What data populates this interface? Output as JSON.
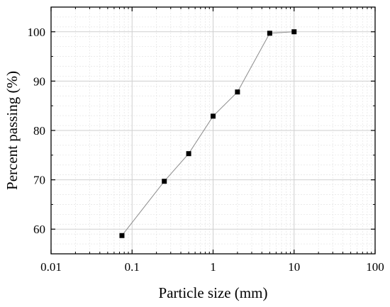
{
  "chart_data": {
    "type": "line",
    "title": "",
    "xlabel": "Particle size (mm)",
    "ylabel": "Percent passing (%)",
    "x_scale": "log",
    "xlim": [
      0.01,
      100
    ],
    "ylim": [
      55,
      105
    ],
    "grid": true,
    "x_ticks": [
      0.01,
      0.1,
      1,
      10,
      100
    ],
    "x_tick_labels": [
      "0.01",
      "0.1",
      "1",
      "10",
      "100"
    ],
    "y_ticks": [
      60,
      70,
      80,
      90,
      100
    ],
    "y_tick_labels": [
      "60",
      "70",
      "80",
      "90",
      "100"
    ],
    "series": [
      {
        "x": [
          0.075,
          0.25,
          0.5,
          1,
          2,
          5,
          10
        ],
        "y": [
          58.7,
          69.7,
          75.3,
          82.9,
          87.8,
          99.7,
          100.0
        ],
        "marker": "square",
        "marker_color": "#000000",
        "line_color": "#8c8c8c"
      }
    ]
  }
}
